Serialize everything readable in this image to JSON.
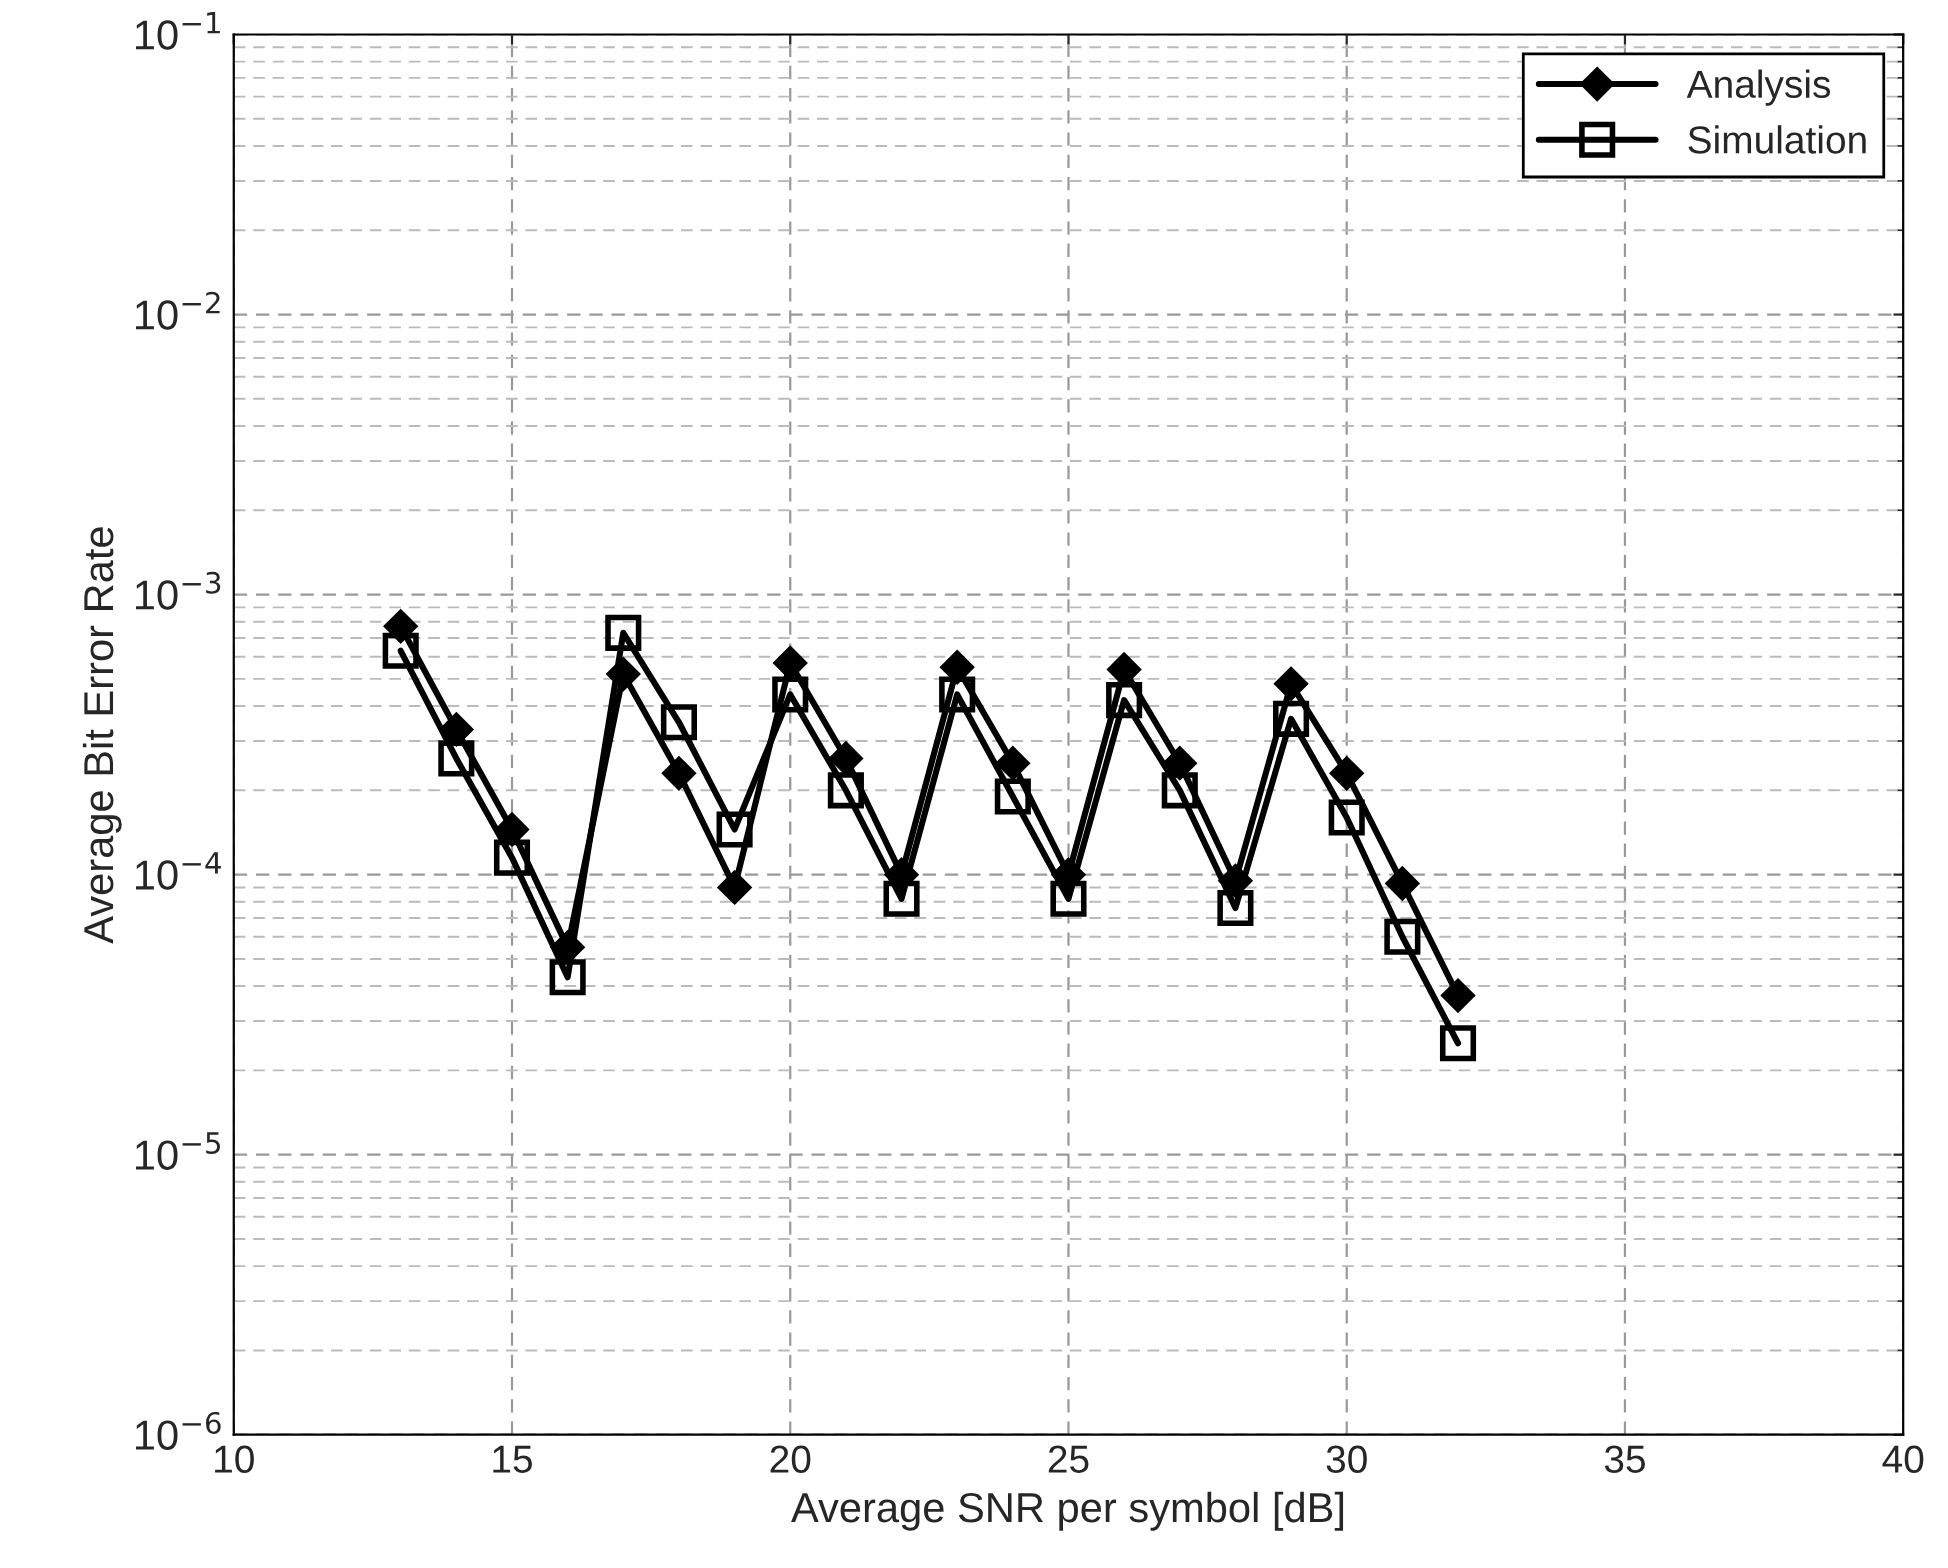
{
  "chart_data": {
    "type": "line",
    "xlabel": "Average SNR per symbol [dB]",
    "ylabel": "Average Bit Error Rate",
    "x": [
      13,
      14,
      15,
      16,
      17,
      18,
      19,
      20,
      21,
      22,
      23,
      24,
      25,
      26,
      27,
      28,
      29,
      30,
      31,
      32
    ],
    "series": [
      {
        "name": "Analysis",
        "color": "#000000",
        "marker": "diamond",
        "values": [
          0.00077,
          0.00033,
          0.000145,
          5.5e-05,
          0.00052,
          0.00023,
          9e-05,
          0.00057,
          0.00026,
          0.0001,
          0.00055,
          0.00025,
          0.0001,
          0.00054,
          0.00025,
          9.5e-05,
          0.00048,
          0.00023,
          9.3e-05,
          3.7e-05
        ]
      },
      {
        "name": "Simulation",
        "color": "#000000",
        "marker": "square",
        "values": [
          0.00063,
          0.00026,
          0.000115,
          4.3e-05,
          0.00073,
          0.00035,
          0.000145,
          0.00044,
          0.0002,
          8.2e-05,
          0.00044,
          0.00019,
          8.2e-05,
          0.00042,
          0.0002,
          7.6e-05,
          0.00036,
          0.00016,
          6e-05,
          2.5e-05
        ]
      }
    ],
    "log": "y",
    "xlim": [
      10,
      40
    ],
    "xticks": [
      10,
      15,
      20,
      25,
      30,
      35,
      40
    ],
    "ylim": [
      1e-06,
      0.1
    ],
    "yticks": [
      {
        "value": 1e-06,
        "label": "10$^{−6}$"
      },
      {
        "value": 1e-05,
        "label": "10$^{−5}$"
      },
      {
        "value": 0.0001,
        "label": "10$^{−4}$"
      },
      {
        "value": 0.001,
        "label": "10$^{−3}$"
      },
      {
        "value": 0.01,
        "label": "10$^{−2}$"
      },
      {
        "value": 0.1,
        "label": "10$^{−1}$"
      }
    ],
    "grid": true,
    "legend": "top right",
    "line_style": "solid"
  }
}
